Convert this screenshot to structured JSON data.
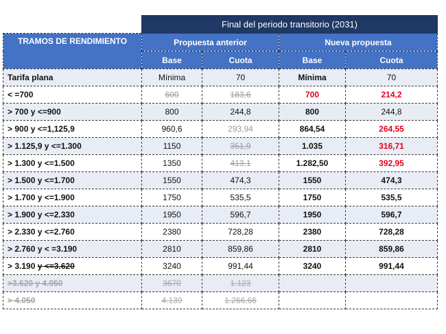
{
  "title": "Final del periodo transitorio (2031)",
  "headers": {
    "tramos": "TRAMOS DE RENDIMIENTO",
    "propuesta_anterior": "Propuesta anterior",
    "nueva_propuesta": "Nueva propuesta",
    "base": "Base",
    "cuota": "Cuota"
  },
  "rows": [
    {
      "tramo": "Tarifa plana",
      "pa_base": "Mínima",
      "pa_cuota": "70",
      "np_base": "Mínima",
      "np_cuota": "70"
    },
    {
      "tramo": "< =700",
      "pa_base": "600",
      "pa_cuota": "183,6",
      "np_base": "700",
      "np_cuota": "214,2"
    },
    {
      "tramo": "> 700 y <=900",
      "pa_base": "800",
      "pa_cuota": "244,8",
      "np_base": "800",
      "np_cuota": "244,8"
    },
    {
      "tramo": "> 900 y <=1,125,9",
      "pa_base": "960,6",
      "pa_cuota": "293,94",
      "np_base": "864,54",
      "np_cuota": "264,55"
    },
    {
      "tramo": "> 1.125,9 y <=1.300",
      "pa_base": "1150",
      "pa_cuota": "351,9",
      "np_base": "1.035",
      "np_cuota": "316,71"
    },
    {
      "tramo": "> 1.300 y <=1.500",
      "pa_base": "1350",
      "pa_cuota": "413,1",
      "np_base": "1.282,50",
      "np_cuota": "392,95"
    },
    {
      "tramo": "> 1.500 y <=1.700",
      "pa_base": "1550",
      "pa_cuota": "474,3",
      "np_base": "1550",
      "np_cuota": "474,3"
    },
    {
      "tramo": "> 1.700 y <=1.900",
      "pa_base": "1750",
      "pa_cuota": "535,5",
      "np_base": "1750",
      "np_cuota": "535,5"
    },
    {
      "tramo": "> 1.900 y <=2.330",
      "pa_base": "1950",
      "pa_cuota": "596,7",
      "np_base": "1950",
      "np_cuota": "596,7"
    },
    {
      "tramo": "> 2.330 y <=2.760",
      "pa_base": "2380",
      "pa_cuota": "728,28",
      "np_base": "2380",
      "np_cuota": "728,28"
    },
    {
      "tramo": "> 2.760 y < =3.190",
      "pa_base": "2810",
      "pa_cuota": "859,86",
      "np_base": "2810",
      "np_cuota": "859,86"
    },
    {
      "tramo_part1": "> 3.190 ",
      "tramo_part2": "y <=3.620",
      "pa_base": "3240",
      "pa_cuota": "991,44",
      "np_base": "3240",
      "np_cuota": "991,44"
    },
    {
      "tramo": ">3.620 y 4.050",
      "pa_base": "3670",
      "pa_cuota": "1.123",
      "np_base": "",
      "np_cuota": ""
    },
    {
      "tramo": "> 4.050",
      "pa_base": "4.139",
      "pa_cuota": "1.266,66",
      "np_base": "",
      "np_cuota": ""
    }
  ],
  "colors": {
    "banner": "#1f3864",
    "header": "#4472c4",
    "stripe": "#e8ecf5",
    "highlight_red": "#e3001b",
    "struck_grey": "#9a9a9a"
  }
}
